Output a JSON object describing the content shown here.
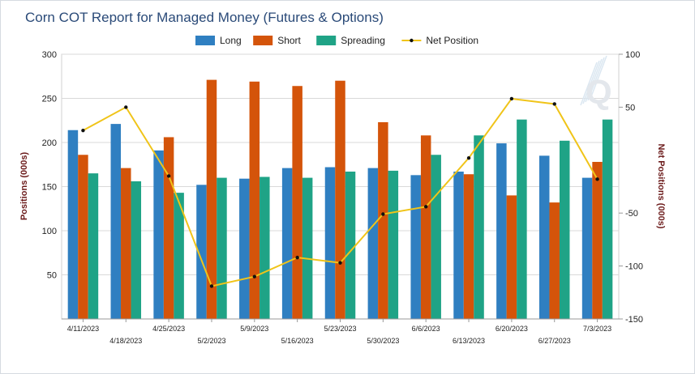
{
  "chart_data": {
    "type": "bar",
    "title": "Corn COT Report for Managed Money (Futures & Options)",
    "xlabel": "",
    "ylabel": "Positions (000s)",
    "y2label": "Net Positions (000s)",
    "ylim": [
      0,
      300
    ],
    "y2lim": [
      -150,
      100
    ],
    "yticks": [
      50,
      100,
      150,
      200,
      250,
      300
    ],
    "y2ticks": [
      -150,
      -100,
      -50,
      50,
      100
    ],
    "grid": true,
    "legend_position": "top-center",
    "categories": [
      "4/11/2023",
      "4/18/2023",
      "4/25/2023",
      "5/2/2023",
      "5/9/2023",
      "5/16/2023",
      "5/23/2023",
      "5/30/2023",
      "6/6/2023",
      "6/13/2023",
      "6/20/2023",
      "6/27/2023",
      "7/3/2023"
    ],
    "series": [
      {
        "name": "Long",
        "type": "bar",
        "color": "#2f7fc1",
        "values": [
          214,
          221,
          191,
          152,
          159,
          171,
          172,
          171,
          163,
          167,
          199,
          185,
          160
        ]
      },
      {
        "name": "Short",
        "type": "bar",
        "color": "#d4540a",
        "values": [
          186,
          171,
          206,
          271,
          269,
          264,
          270,
          223,
          208,
          164,
          140,
          132,
          178
        ]
      },
      {
        "name": "Spreading",
        "type": "bar",
        "color": "#1fa386",
        "values": [
          165,
          156,
          143,
          160,
          161,
          160,
          167,
          168,
          186,
          208,
          226,
          202,
          226
        ]
      },
      {
        "name": "Net Position",
        "type": "line",
        "axis": "right",
        "color": "#f0c419",
        "values": [
          28,
          50,
          -15,
          -119,
          -110,
          -92,
          -97,
          -51,
          -44,
          2,
          58,
          53,
          -18
        ]
      }
    ]
  },
  "watermark": "Q"
}
